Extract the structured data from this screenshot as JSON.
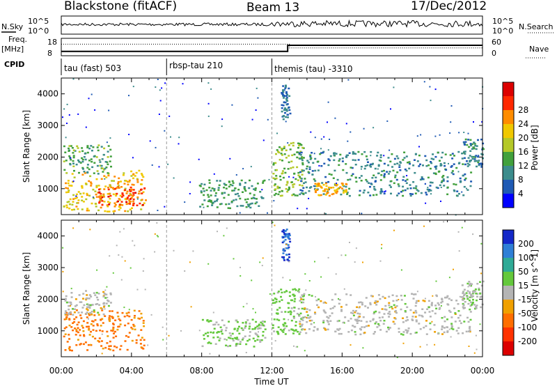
{
  "header": {
    "title": "Blackstone (fitACF)",
    "beam": "Beam 13",
    "date": "17/Dec/2012"
  },
  "strip_labels": {
    "nsky": "N.Sky",
    "nsearch": "N.Search",
    "freq": "Freq.",
    "freq_unit": "[MHz]",
    "nave": "Nave",
    "cpid": "CPID"
  },
  "strip_ticks": {
    "noise_left": [
      "10^5",
      "10^0"
    ],
    "noise_right": [
      "10^5",
      "10^0"
    ],
    "freq_left": [
      "18",
      "8"
    ],
    "nave_right": [
      "60",
      "0"
    ]
  },
  "cpid_segments": [
    {
      "label": "tau (fast) 503",
      "start_hour": 0
    },
    {
      "label": "rbsp-tau 210",
      "start_hour": 6
    },
    {
      "label": "themis (tau) -3310",
      "start_hour": 12
    }
  ],
  "panels": {
    "y_label": "Slant Range [km]",
    "y_ticks": [
      "1000",
      "2000",
      "3000",
      "4000"
    ],
    "x_ticks": [
      "00:00",
      "04:00",
      "08:00",
      "12:00",
      "16:00",
      "20:00",
      "00:00"
    ],
    "x_label": "Time UT"
  },
  "power_scale": {
    "label": "Power [dB]",
    "ticks": [
      "4",
      "8",
      "12",
      "16",
      "20",
      "24",
      "28"
    ],
    "colors": [
      "#0000ff",
      "#1f5ab4",
      "#3c8c8c",
      "#41a03c",
      "#b4c828",
      "#f0c800",
      "#ff8c00",
      "#ff2800",
      "#dc0000"
    ]
  },
  "velocity_scale": {
    "label": "Velocity [m s^-1]",
    "ticks": [
      "200",
      "100",
      "50",
      "15",
      "-15",
      "-50",
      "-100",
      "-200"
    ],
    "colors": [
      "#1428c8",
      "#2f7fd6",
      "#2faa96",
      "#64c83c",
      "#b4b4b4",
      "#f0a000",
      "#ff6e00",
      "#ff3200",
      "#dc0000"
    ]
  },
  "chart_data": {
    "type": "heatmap",
    "x_range_hours": [
      0,
      24
    ],
    "y_range_km": [
      180,
      4500
    ],
    "y_ticks_km": [
      1000,
      2000,
      3000,
      4000
    ],
    "x_ticks_hours": [
      0,
      4,
      8,
      12,
      16,
      20,
      24
    ],
    "cpid_boundaries_hours": [
      6,
      12
    ],
    "frequency_step": {
      "hour": 12.9,
      "from_mhz": 10.5,
      "to_mhz": 14
    },
    "nave_levels": {
      "before": 40,
      "after_13ut": 27
    },
    "power_regions": [
      {
        "t": [
          0.1,
          4.7
        ],
        "r": [
          300,
          1600
        ],
        "db": 22
      },
      {
        "t": [
          2.0,
          4.8
        ],
        "r": [
          500,
          1100
        ],
        "db": 29
      },
      {
        "t": [
          0.1,
          2.8
        ],
        "r": [
          1500,
          2400
        ],
        "db": 13
      },
      {
        "t": [
          7.8,
          11.6
        ],
        "r": [
          400,
          1300
        ],
        "db": 12
      },
      {
        "t": [
          12.0,
          13.8
        ],
        "r": [
          800,
          2500
        ],
        "db": 16
      },
      {
        "t": [
          12.5,
          13.0
        ],
        "r": [
          3200,
          4300
        ],
        "db": 8
      },
      {
        "t": [
          13.5,
          23.3
        ],
        "r": [
          800,
          2200
        ],
        "db": 10
      },
      {
        "t": [
          14.4,
          16.2
        ],
        "r": [
          800,
          1200
        ],
        "db": 24
      },
      {
        "t": [
          22.8,
          24.0
        ],
        "r": [
          1700,
          2600
        ],
        "db": 10
      }
    ],
    "velocity_regions": [
      {
        "t": [
          0.1,
          4.7
        ],
        "r": [
          400,
          1700
        ],
        "v": -60
      },
      {
        "t": [
          0.1,
          2.8
        ],
        "r": [
          1500,
          2300
        ],
        "v": 0
      },
      {
        "t": [
          7.8,
          11.6
        ],
        "r": [
          500,
          1400
        ],
        "v": 20
      },
      {
        "t": [
          12.0,
          13.8
        ],
        "r": [
          900,
          2400
        ],
        "v": 30
      },
      {
        "t": [
          12.5,
          13.0
        ],
        "r": [
          3200,
          4300
        ],
        "v": 200
      },
      {
        "t": [
          13.5,
          23.3
        ],
        "r": [
          900,
          2200
        ],
        "v": 0
      },
      {
        "t": [
          22.8,
          24.0
        ],
        "r": [
          1700,
          2600
        ],
        "v": 10
      }
    ]
  }
}
